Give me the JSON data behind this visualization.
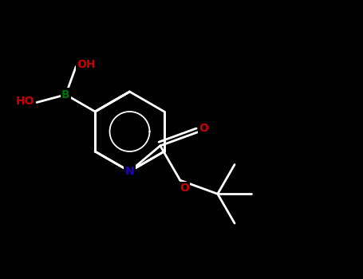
{
  "bg_color": "#000000",
  "bond_color": "#000000",
  "bond_width": 2.0,
  "N_color": "#2200bb",
  "O_color": "#cc0000",
  "B_color": "#007000",
  "figsize": [
    4.55,
    3.5
  ],
  "dpi": 100,
  "xlim": [
    0.0,
    9.0
  ],
  "ylim": [
    0.5,
    7.5
  ]
}
